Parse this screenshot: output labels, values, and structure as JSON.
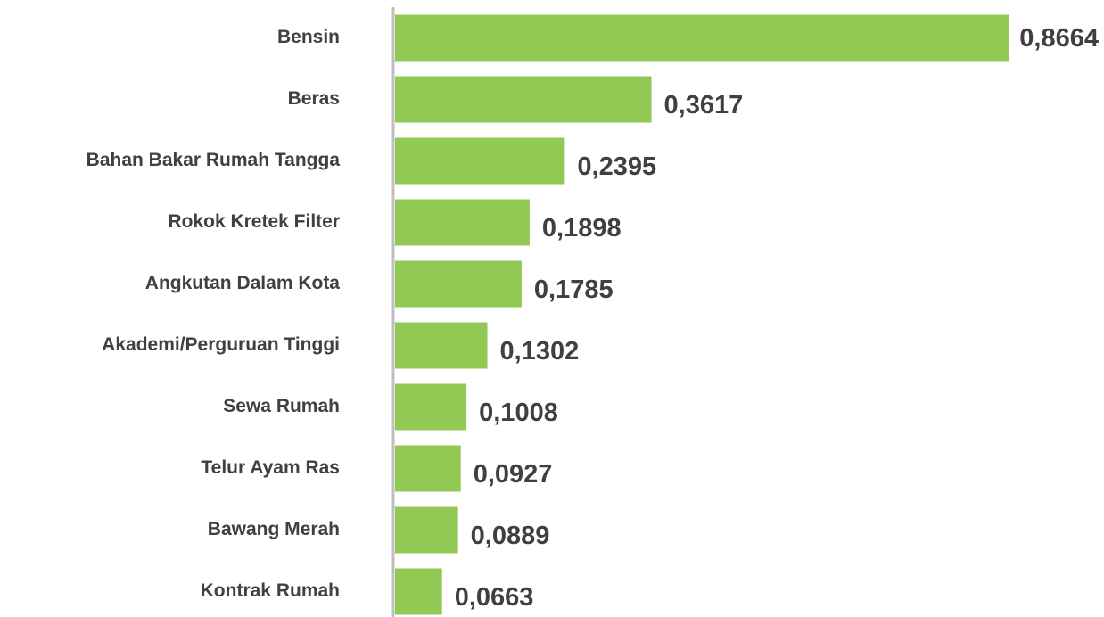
{
  "chart_data": {
    "type": "bar",
    "orientation": "horizontal",
    "categories": [
      "Bensin",
      "Beras",
      "Bahan Bakar Rumah Tangga",
      "Rokok Kretek Filter",
      "Angkutan Dalam Kota",
      "Akademi/Perguruan Tinggi",
      "Sewa Rumah",
      "Telur Ayam Ras",
      "Bawang Merah",
      "Kontrak Rumah"
    ],
    "values": [
      0.8664,
      0.3617,
      0.2395,
      0.1898,
      0.1785,
      0.1302,
      0.1008,
      0.0927,
      0.0889,
      0.0663
    ],
    "value_labels": [
      "0,8664",
      "0,3617",
      "0,2395",
      "0,1898",
      "0,1785",
      "0,1302",
      "0,1008",
      "0,0927",
      "0,0889",
      "0,0663"
    ],
    "color": "#92c955",
    "xlim": [
      0,
      1
    ]
  }
}
